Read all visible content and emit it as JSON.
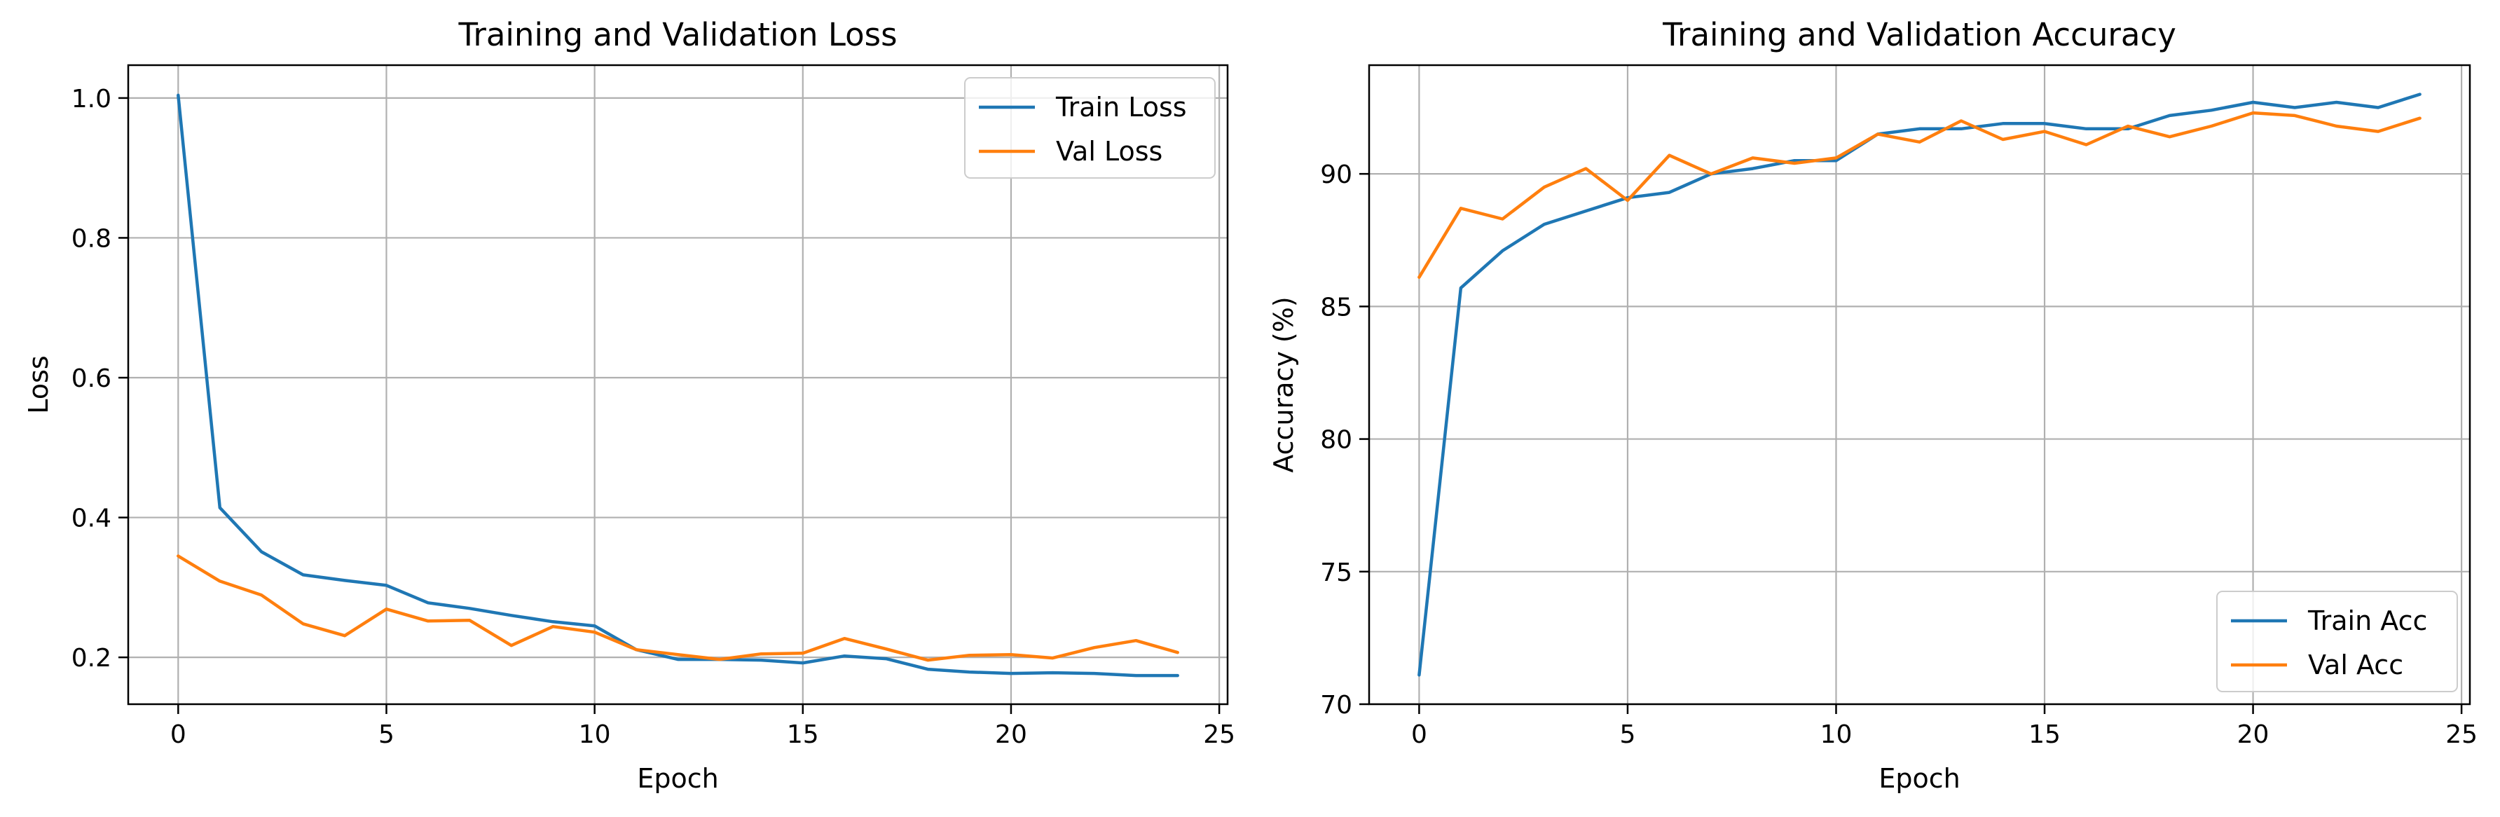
{
  "colors": {
    "train": "#1f77b4",
    "val": "#ff7f0e"
  },
  "chart_data": [
    {
      "type": "line",
      "title": "Training and Validation Loss",
      "xlabel": "Epoch",
      "ylabel": "Loss",
      "xlim": [
        -1.2,
        25.2
      ],
      "ylim": [
        0.133,
        1.047
      ],
      "xticks": [
        0,
        5,
        10,
        15,
        20,
        25
      ],
      "yticks": [
        0.2,
        0.4,
        0.6,
        0.8,
        1.0
      ],
      "ytick_labels": [
        "0.2",
        "0.4",
        "0.6",
        "0.8",
        "1.0"
      ],
      "grid": true,
      "legend_position": "top-right",
      "x": [
        0,
        1,
        2,
        3,
        4,
        5,
        6,
        7,
        8,
        9,
        10,
        11,
        12,
        13,
        14,
        15,
        16,
        17,
        18,
        19,
        20,
        21,
        22,
        23,
        24
      ],
      "series": [
        {
          "name": "Train Loss",
          "color_key": "train",
          "values": [
            1.004,
            0.414,
            0.351,
            0.318,
            0.31,
            0.303,
            0.278,
            0.27,
            0.26,
            0.251,
            0.245,
            0.211,
            0.197,
            0.197,
            0.196,
            0.192,
            0.202,
            0.198,
            0.183,
            0.179,
            0.177,
            0.178,
            0.177,
            0.174,
            0.174
          ]
        },
        {
          "name": "Val Loss",
          "color_key": "val",
          "values": [
            0.345,
            0.309,
            0.289,
            0.248,
            0.231,
            0.269,
            0.252,
            0.253,
            0.217,
            0.244,
            0.236,
            0.211,
            0.204,
            0.197,
            0.205,
            0.206,
            0.227,
            0.212,
            0.196,
            0.203,
            0.204,
            0.199,
            0.214,
            0.224,
            0.207
          ]
        }
      ]
    },
    {
      "type": "line",
      "title": "Training and Validation Accuracy",
      "xlabel": "Epoch",
      "ylabel": "Accuracy (%)",
      "xlim": [
        -1.2,
        25.2
      ],
      "ylim": [
        70.0,
        94.1
      ],
      "xticks": [
        0,
        5,
        10,
        15,
        20,
        25
      ],
      "yticks": [
        70,
        75,
        80,
        85,
        90
      ],
      "ytick_labels": [
        "70",
        "75",
        "80",
        "85",
        "90"
      ],
      "grid": true,
      "legend_position": "bottom-right",
      "x": [
        0,
        1,
        2,
        3,
        4,
        5,
        6,
        7,
        8,
        9,
        10,
        11,
        12,
        13,
        14,
        15,
        16,
        17,
        18,
        19,
        20,
        21,
        22,
        23,
        24
      ],
      "series": [
        {
          "name": "Train Acc",
          "color_key": "train",
          "values": [
            71.1,
            85.7,
            87.1,
            88.1,
            88.6,
            89.1,
            89.3,
            90.0,
            90.2,
            90.5,
            90.5,
            91.5,
            91.7,
            91.7,
            91.9,
            91.9,
            91.7,
            91.7,
            92.2,
            92.4,
            92.7,
            92.5,
            92.7,
            92.5,
            93.0
          ]
        },
        {
          "name": "Val Acc",
          "color_key": "val",
          "values": [
            86.1,
            88.7,
            88.3,
            89.5,
            90.2,
            89.0,
            90.7,
            90.0,
            90.6,
            90.4,
            90.6,
            91.5,
            91.2,
            92.0,
            91.3,
            91.6,
            91.1,
            91.8,
            91.4,
            91.8,
            92.3,
            92.2,
            91.8,
            91.6,
            92.1
          ]
        }
      ]
    }
  ]
}
